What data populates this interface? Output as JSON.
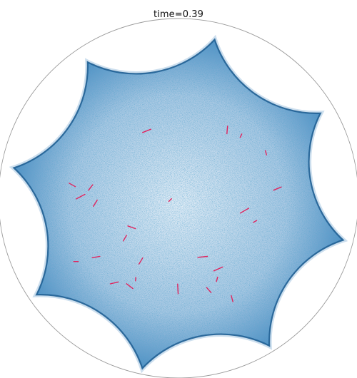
{
  "title": "time=0.39",
  "colors": {
    "background": "#ffffff",
    "boundary_circle": "#9a9a9a",
    "particle_fill_light": "#cfe2f2",
    "particle_fill_mid": "#5b97c8",
    "particle_edge_dark": "#1f5f94",
    "tracer_trail": "#e0245e"
  },
  "shape": {
    "type": "eight-pointed star with concave arcs",
    "points": 8
  },
  "tracer_count": 26
}
